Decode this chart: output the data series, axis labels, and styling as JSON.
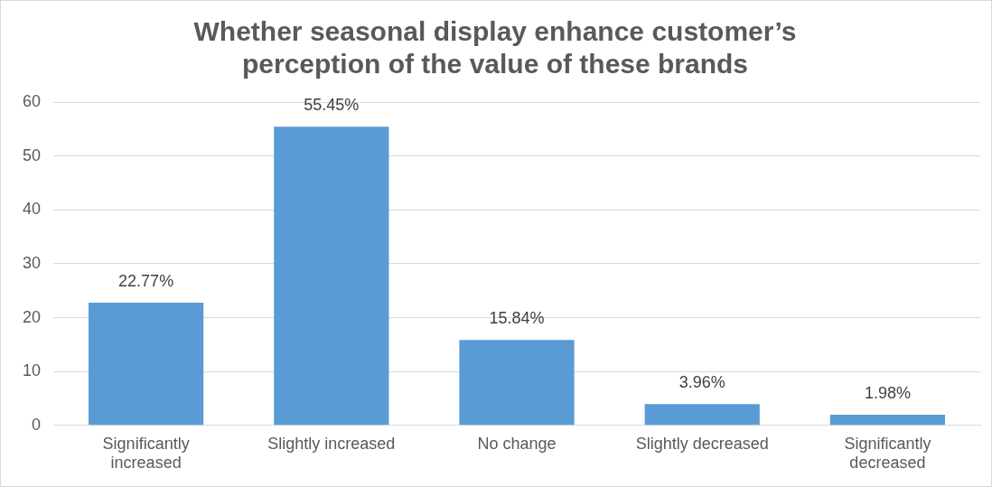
{
  "chart_data": {
    "type": "bar",
    "title": "Whether seasonal display enhance customer’s perception of the value of these brands",
    "categories": [
      "Significantly increased",
      "Slightly increased",
      "No change",
      "Slightly decreased",
      "Significantly decreased"
    ],
    "values": [
      22.77,
      55.45,
      15.84,
      3.96,
      1.98
    ],
    "value_labels": [
      "22.77%",
      "55.45%",
      "15.84%",
      "3.96%",
      "1.98%"
    ],
    "color": "#5b9bd5",
    "ylim": [
      0,
      60
    ],
    "yticks": [
      0,
      10,
      20,
      30,
      40,
      50,
      60
    ],
    "grid": "y"
  }
}
